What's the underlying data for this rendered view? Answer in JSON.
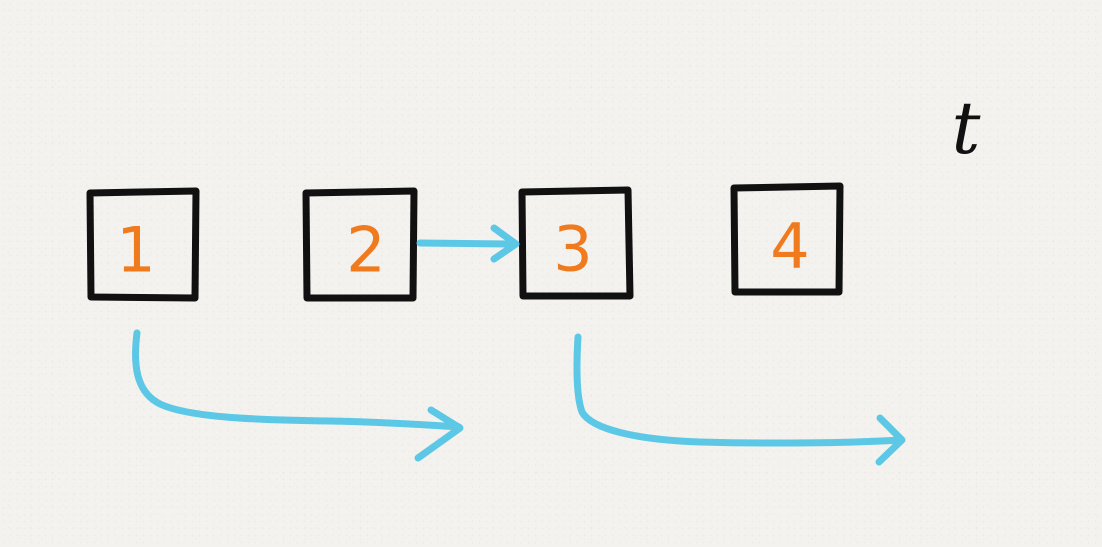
{
  "colors": {
    "box_stroke": "#111111",
    "node_text": "#f07a1e",
    "arrow": "#5cc8e6",
    "pointer_text": "#111111"
  },
  "nodes": [
    {
      "label": "1"
    },
    {
      "label": "2"
    },
    {
      "label": "3"
    },
    {
      "label": "4"
    }
  ],
  "pointer": {
    "label": "t"
  },
  "arrows": [
    {
      "from": "2",
      "to": "3",
      "shape": "straight"
    },
    {
      "from": "1",
      "to": "3",
      "shape": "curved-below"
    },
    {
      "from": "3",
      "to": "beyond-4",
      "shape": "curved-below"
    }
  ]
}
